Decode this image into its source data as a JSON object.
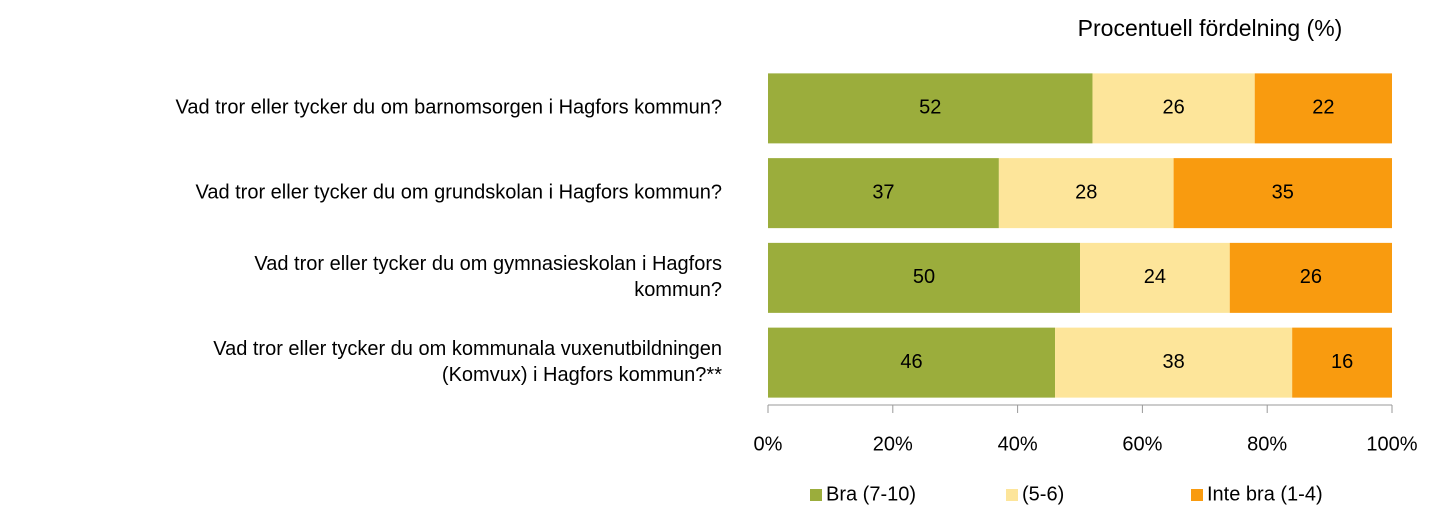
{
  "chart_data": {
    "type": "stacked-barh",
    "title": "Procentuell fördelning (%)",
    "categories": [
      [
        "Vad tror eller tycker du om barnomsorgen i Hagfors kommun?"
      ],
      [
        "Vad tror eller tycker du om grundskolan i Hagfors kommun?"
      ],
      [
        "Vad tror eller tycker du om gymnasieskolan i Hagfors",
        "kommun?"
      ],
      [
        "Vad tror eller tycker du om kommunala vuxenutbildningen",
        "(Komvux) i Hagfors kommun?**"
      ]
    ],
    "series": [
      {
        "name": "Bra (7-10)",
        "color": "#9bad3c",
        "values": [
          52,
          37,
          50,
          46
        ]
      },
      {
        "name": "(5-6)",
        "color": "#fde59a",
        "values": [
          26,
          28,
          24,
          38
        ]
      },
      {
        "name": "Inte bra (1-4)",
        "color": "#f99b0f",
        "values": [
          22,
          35,
          26,
          16
        ]
      }
    ],
    "xlim": [
      0,
      100
    ],
    "xticks": [
      {
        "value": 0,
        "label": "0%"
      },
      {
        "value": 20,
        "label": "20%"
      },
      {
        "value": 40,
        "label": "40%"
      },
      {
        "value": 60,
        "label": "60%"
      },
      {
        "value": 80,
        "label": "80%"
      },
      {
        "value": 100,
        "label": "100%"
      }
    ],
    "legend": "bottom"
  }
}
